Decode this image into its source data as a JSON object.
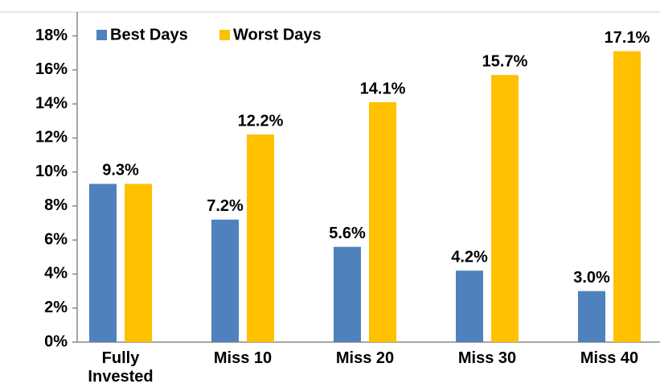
{
  "chart_data": {
    "type": "bar",
    "categories": [
      "Fully Invested",
      "Miss 10",
      "Miss 20",
      "Miss 30",
      "Miss 40"
    ],
    "series": [
      {
        "name": "Best Days",
        "color": "#4f81bd",
        "values": [
          9.3,
          7.2,
          5.6,
          4.2,
          3.0
        ],
        "value_labels": [
          "9.3%",
          "7.2%",
          "5.6%",
          "4.2%",
          "3.0%"
        ]
      },
      {
        "name": "Worst Days",
        "color": "#ffc000",
        "values": [
          9.3,
          12.2,
          14.1,
          15.7,
          17.1
        ],
        "value_labels": [
          null,
          "12.2%",
          "14.1%",
          "15.7%",
          "17.1%"
        ]
      }
    ],
    "ylim": [
      0,
      19.4
    ],
    "yticks": [
      {
        "value": 0,
        "label": "0%"
      },
      {
        "value": 2,
        "label": "2%"
      },
      {
        "value": 4,
        "label": "4%"
      },
      {
        "value": 6,
        "label": "6%"
      },
      {
        "value": 8,
        "label": "8%"
      },
      {
        "value": 10,
        "label": "10%"
      },
      {
        "value": 12,
        "label": "12%"
      },
      {
        "value": 14,
        "label": "14%"
      },
      {
        "value": 16,
        "label": "16%"
      },
      {
        "value": 18,
        "label": "18%"
      }
    ],
    "legend": "top-left",
    "grid": false
  }
}
